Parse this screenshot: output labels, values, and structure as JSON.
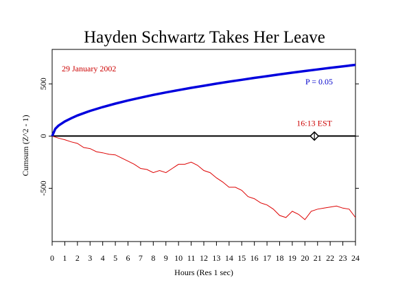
{
  "chart_data": {
    "type": "line",
    "title": "Hayden Schwartz Takes Her Leave",
    "xlabel": "Hours (Res 1 sec)",
    "ylabel": "Cumsum (Z^2 - 1)",
    "xlim": [
      0,
      24
    ],
    "ylim": [
      -1010,
      830
    ],
    "x_ticks": [
      "0",
      "1",
      "2",
      "3",
      "4",
      "5",
      "6",
      "7",
      "8",
      "9",
      "10",
      "11",
      "12",
      "13",
      "14",
      "15",
      "16",
      "17",
      "18",
      "19",
      "20",
      "21",
      "22",
      "23",
      "24"
    ],
    "y_ticks": [
      500,
      0,
      -500
    ],
    "y_tick_labels": [
      "500",
      "0",
      "-500"
    ],
    "date_label": "29 January 2002",
    "event_label": "16:13 EST",
    "event_x": 20.75,
    "event_y": 0,
    "colors": {
      "cumsum": "#dd0000",
      "envelope": "#0000dd",
      "event": "#cc0000",
      "p_label": "#0000cc"
    },
    "series": [
      {
        "kind": "cumsum",
        "color": "#dd0000",
        "x": [
          0,
          0.5,
          1,
          1.5,
          2,
          2.5,
          3,
          3.5,
          4,
          4.5,
          5,
          5.5,
          6,
          6.5,
          7,
          7.5,
          8,
          8.5,
          9,
          9.5,
          10,
          10.5,
          11,
          11.5,
          12,
          12.5,
          13,
          13.5,
          14,
          14.5,
          15,
          15.5,
          16,
          16.5,
          17,
          17.5,
          18,
          18.5,
          19,
          19.5,
          20,
          20.5,
          21,
          21.5,
          22,
          22.5,
          23,
          23.5,
          24
        ],
        "y": [
          0,
          -20,
          -35,
          -55,
          -70,
          -110,
          -120,
          -150,
          -160,
          -175,
          -180,
          -210,
          -240,
          -270,
          -310,
          -320,
          -350,
          -330,
          -350,
          -310,
          -270,
          -270,
          -250,
          -280,
          -330,
          -350,
          -400,
          -440,
          -490,
          -490,
          -520,
          -580,
          -600,
          -640,
          -660,
          -700,
          -760,
          -780,
          -720,
          -750,
          -800,
          -720,
          -700,
          -690,
          -680,
          -670,
          -690,
          -700,
          -780
        ]
      },
      {
        "name": "P = 0.05",
        "kind": "envelope",
        "color": "#0000dd",
        "x": [
          0,
          0.25,
          0.5,
          1,
          1.5,
          2,
          3,
          4,
          5,
          6,
          7,
          8,
          9,
          10,
          11,
          12,
          13,
          14,
          15,
          16,
          17,
          18,
          19,
          20,
          21,
          22,
          23,
          24
        ],
        "y": [
          0,
          70,
          100,
          140,
          170,
          197,
          241,
          278,
          311,
          341,
          368,
          394,
          418,
          440,
          462,
          482,
          502,
          521,
          539,
          557,
          574,
          591,
          607,
          623,
          638,
          653,
          668,
          682
        ]
      }
    ]
  }
}
